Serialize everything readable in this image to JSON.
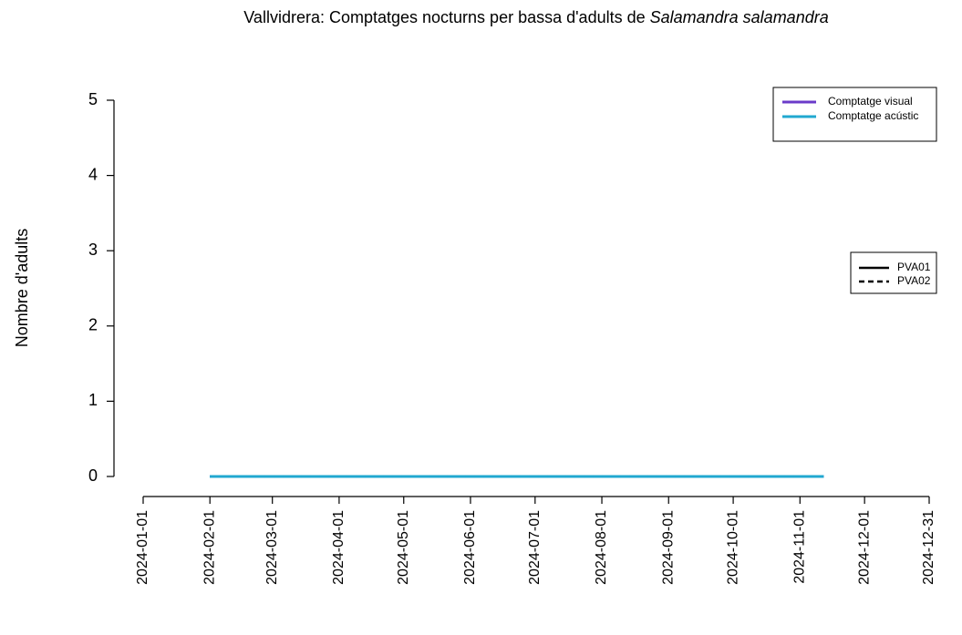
{
  "chart_data": {
    "type": "line",
    "title": {
      "text": "Vallvidrera: Comptatges nocturns per bassa d'adults de",
      "italic": "Salamandra salamandra"
    },
    "y_label": "Nombre d'adults",
    "x": [
      "2024-02-01",
      "2024-03-01",
      "2024-04-01",
      "2024-05-01",
      "2024-06-01",
      "2024-07-01",
      "2024-08-01",
      "2024-09-01",
      "2024-10-01",
      "2024-11-01",
      "2024-11-12"
    ],
    "linetypes": [
      {
        "name": "PVA01",
        "dash": "solid"
      },
      {
        "name": "PVA02",
        "dash": "dashed"
      }
    ],
    "series": [
      {
        "name": "Comptatge visual",
        "color": "#6a3bc9",
        "values": [
          [
            0,
            0,
            0,
            0,
            0,
            0,
            0,
            0,
            0,
            0,
            0
          ],
          [
            0,
            0,
            0,
            0,
            0,
            0,
            0,
            0,
            0,
            0,
            0
          ]
        ]
      },
      {
        "name": "Comptatge acústic",
        "color": "#22a8d0",
        "values": [
          [
            0,
            0,
            0,
            0,
            0,
            0,
            0,
            0,
            0,
            0,
            0
          ],
          [
            0,
            0,
            0,
            0,
            0,
            0,
            0,
            0,
            0,
            0,
            0
          ]
        ]
      }
    ],
    "xlim": [
      "2024-01-01",
      "2024-12-31"
    ],
    "xticks": [
      "2024-01-01",
      "2024-02-01",
      "2024-03-01",
      "2024-04-01",
      "2024-05-01",
      "2024-06-01",
      "2024-07-01",
      "2024-08-01",
      "2024-09-01",
      "2024-10-01",
      "2024-11-01",
      "2024-12-01",
      "2024-12-31"
    ],
    "ylim": [
      0,
      5
    ],
    "yticks": [
      0,
      1,
      2,
      3,
      4,
      5
    ],
    "legend": "topright"
  }
}
